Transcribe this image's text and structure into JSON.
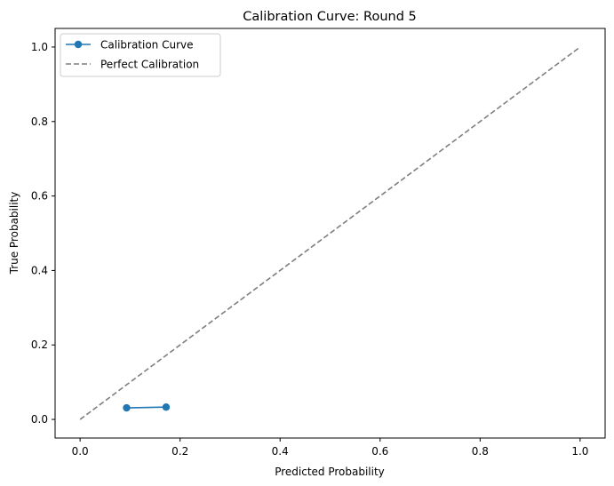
{
  "chart_data": {
    "type": "line",
    "title": "Calibration Curve: Round 5",
    "xlabel": "Predicted Probability",
    "ylabel": "True Probability",
    "xlim": [
      -0.05,
      1.05
    ],
    "ylim": [
      -0.05,
      1.05
    ],
    "xticks": [
      "0.0",
      "0.2",
      "0.4",
      "0.6",
      "0.8",
      "1.0"
    ],
    "yticks": [
      "0.0",
      "0.2",
      "0.4",
      "0.6",
      "0.8",
      "1.0"
    ],
    "grid": false,
    "legend_position": "top-left",
    "series": [
      {
        "name": "Calibration Curve",
        "color": "#1f77b4",
        "style": "solid-with-markers",
        "x": [
          0.093,
          0.172
        ],
        "y": [
          0.031,
          0.033
        ]
      },
      {
        "name": "Perfect Calibration",
        "color": "#7f7f7f",
        "style": "dashed",
        "x": [
          0.0,
          1.0
        ],
        "y": [
          0.0,
          1.0
        ]
      }
    ]
  }
}
